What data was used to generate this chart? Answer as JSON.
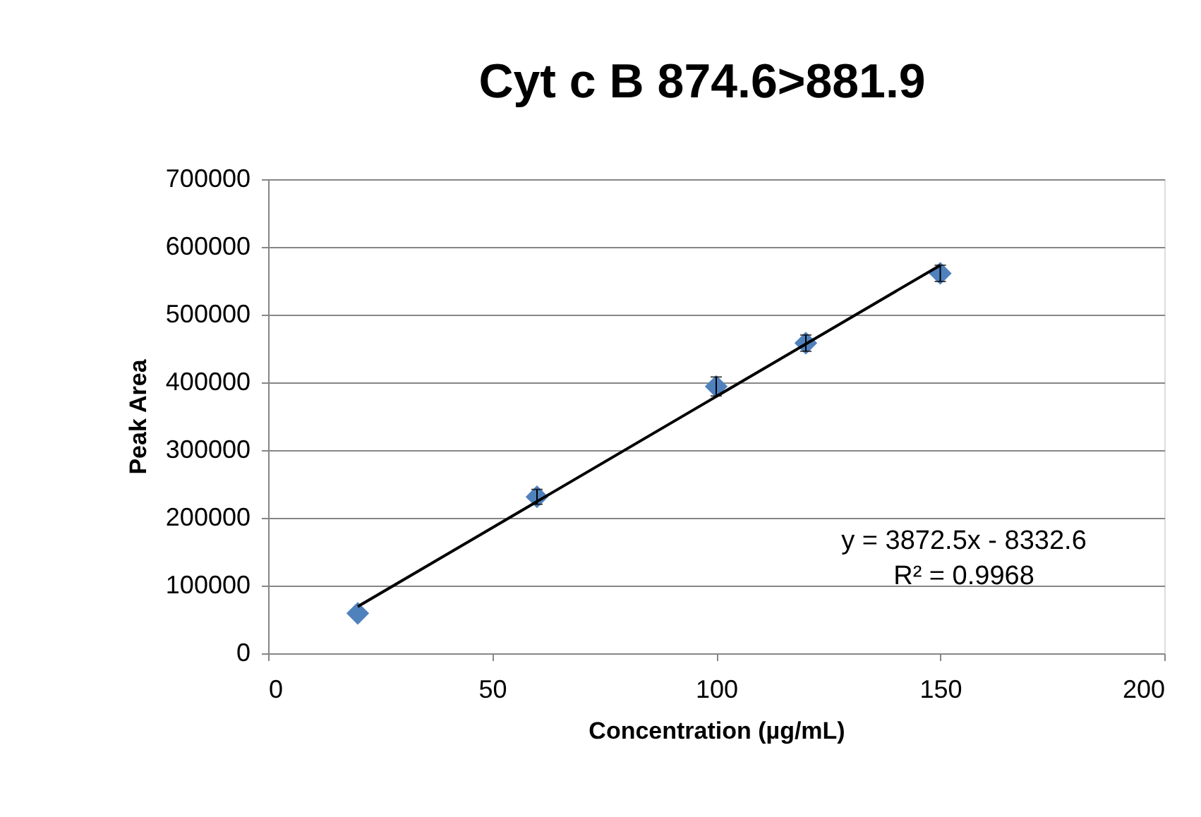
{
  "chart_data": {
    "type": "scatter",
    "title": "Cyt c B 874.6>881.9",
    "xlabel": "Concentration (µg/mL)",
    "ylabel": "Peak Area",
    "x": [
      20,
      60,
      100,
      120,
      150
    ],
    "series": [
      {
        "color": "#4f81bd",
        "values": [
          59000,
          231000,
          394000,
          458000,
          561000
        ],
        "errors": [
          null,
          11000,
          14000,
          12000,
          12000
        ],
        "marker": "diamond"
      },
      {
        "type": "line",
        "color": "#000000",
        "x": [
          20,
          150
        ],
        "values": [
          69000,
          573000
        ],
        "marker": "none",
        "line_style": "solid"
      }
    ],
    "annotations": [
      "y = 3872.5x - 8332.6",
      "R² = 0.9968"
    ],
    "xlim": [
      0,
      200
    ],
    "xticks": [
      0,
      50,
      100,
      150,
      200
    ],
    "ylim": [
      0,
      700000
    ],
    "yticks": [
      0,
      100000,
      200000,
      300000,
      400000,
      500000,
      600000,
      700000
    ],
    "grid": "y",
    "legend": false
  }
}
